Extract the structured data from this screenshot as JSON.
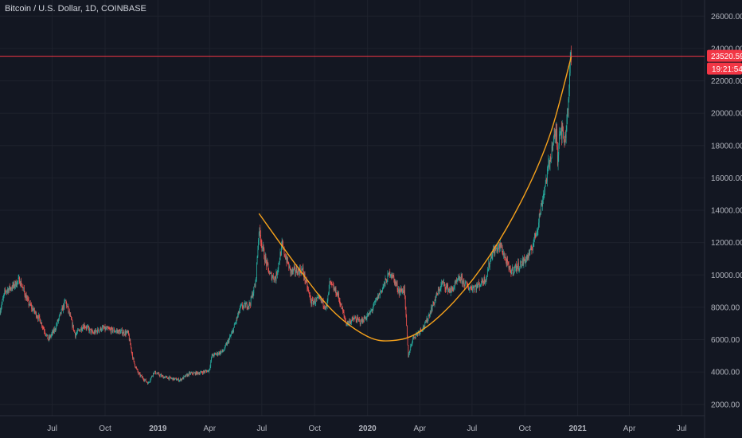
{
  "header": {
    "title": "Bitcoin / U.S. Dollar, 1D, COINBASE"
  },
  "colors": {
    "background": "#131722",
    "grid": "#1e222d",
    "up": "#26a69a",
    "down": "#ef5350",
    "curve": "#f7a21b",
    "price_line": "#f23645",
    "axis_text": "#b2b5be"
  },
  "chart_data": {
    "type": "candlestick",
    "title": "Bitcoin / U.S. Dollar, 1D, COINBASE",
    "y_axis": {
      "side": "right",
      "range": [
        1300,
        27000
      ],
      "ticks": [
        2000,
        4000,
        6000,
        8000,
        10000,
        12000,
        14000,
        16000,
        18000,
        20000,
        22000,
        24000,
        26000
      ],
      "tick_labels": [
        "2000.00",
        "4000.00",
        "6000.00",
        "8000.00",
        "10000.00",
        "12000.00",
        "14000.00",
        "16000.00",
        "18000.00",
        "20000.00",
        "22000.00",
        "24000.00",
        "26000.00"
      ]
    },
    "x_axis": {
      "range": [
        "2018-04-01",
        "2021-08-10"
      ],
      "ticks": [
        {
          "date": "2018-07-01",
          "label": "Jul",
          "bold": false
        },
        {
          "date": "2018-10-01",
          "label": "Oct",
          "bold": false
        },
        {
          "date": "2019-01-01",
          "label": "2019",
          "bold": true
        },
        {
          "date": "2019-04-01",
          "label": "Apr",
          "bold": false
        },
        {
          "date": "2019-07-01",
          "label": "Jul",
          "bold": false
        },
        {
          "date": "2019-10-01",
          "label": "Oct",
          "bold": false
        },
        {
          "date": "2020-01-01",
          "label": "2020",
          "bold": true
        },
        {
          "date": "2020-04-01",
          "label": "Apr",
          "bold": false
        },
        {
          "date": "2020-07-01",
          "label": "Jul",
          "bold": false
        },
        {
          "date": "2020-10-01",
          "label": "Oct",
          "bold": false
        },
        {
          "date": "2021-01-01",
          "label": "2021",
          "bold": true
        },
        {
          "date": "2021-04-01",
          "label": "Apr",
          "bold": false
        },
        {
          "date": "2021-07-01",
          "label": "Jul",
          "bold": false
        }
      ]
    },
    "price_path": [
      [
        "2018-04-01",
        7800
      ],
      [
        "2018-04-10",
        9000
      ],
      [
        "2018-04-24",
        9300
      ],
      [
        "2018-05-05",
        9700
      ],
      [
        "2018-05-20",
        8300
      ],
      [
        "2018-06-10",
        7200
      ],
      [
        "2018-06-24",
        6000
      ],
      [
        "2018-07-05",
        6600
      ],
      [
        "2018-07-24",
        8400
      ],
      [
        "2018-08-10",
        6300
      ],
      [
        "2018-08-25",
        6900
      ],
      [
        "2018-09-10",
        6400
      ],
      [
        "2018-09-25",
        6700
      ],
      [
        "2018-10-10",
        6600
      ],
      [
        "2018-11-10",
        6400
      ],
      [
        "2018-11-20",
        4600
      ],
      [
        "2018-11-28",
        3900
      ],
      [
        "2018-12-15",
        3300
      ],
      [
        "2018-12-25",
        4000
      ],
      [
        "2019-01-10",
        3700
      ],
      [
        "2019-02-08",
        3500
      ],
      [
        "2019-02-25",
        3900
      ],
      [
        "2019-03-15",
        3950
      ],
      [
        "2019-03-31",
        4100
      ],
      [
        "2019-04-05",
        5000
      ],
      [
        "2019-04-25",
        5300
      ],
      [
        "2019-05-10",
        6400
      ],
      [
        "2019-05-25",
        8000
      ],
      [
        "2019-06-10",
        8200
      ],
      [
        "2019-06-20",
        9500
      ],
      [
        "2019-06-26",
        12800
      ],
      [
        "2019-07-05",
        11200
      ],
      [
        "2019-07-15",
        10000
      ],
      [
        "2019-07-25",
        9800
      ],
      [
        "2019-08-05",
        11800
      ],
      [
        "2019-08-20",
        10200
      ],
      [
        "2019-09-10",
        10300
      ],
      [
        "2019-09-25",
        8300
      ],
      [
        "2019-10-10",
        8500
      ],
      [
        "2019-10-22",
        8000
      ],
      [
        "2019-10-27",
        9500
      ],
      [
        "2019-11-10",
        8800
      ],
      [
        "2019-11-25",
        7000
      ],
      [
        "2019-12-10",
        7300
      ],
      [
        "2019-12-20",
        7100
      ],
      [
        "2020-01-05",
        7600
      ],
      [
        "2020-01-20",
        8700
      ],
      [
        "2020-02-10",
        10200
      ],
      [
        "2020-02-25",
        9000
      ],
      [
        "2020-03-05",
        9100
      ],
      [
        "2020-03-12",
        5000
      ],
      [
        "2020-03-20",
        6100
      ],
      [
        "2020-04-10",
        6900
      ],
      [
        "2020-04-30",
        8700
      ],
      [
        "2020-05-10",
        9500
      ],
      [
        "2020-05-25",
        9000
      ],
      [
        "2020-06-10",
        9800
      ],
      [
        "2020-06-25",
        9200
      ],
      [
        "2020-07-10",
        9300
      ],
      [
        "2020-07-25",
        9800
      ],
      [
        "2020-08-05",
        11400
      ],
      [
        "2020-08-20",
        11800
      ],
      [
        "2020-09-05",
        10200
      ],
      [
        "2020-09-25",
        10700
      ],
      [
        "2020-10-10",
        11300
      ],
      [
        "2020-10-22",
        12800
      ],
      [
        "2020-11-05",
        15500
      ],
      [
        "2020-11-18",
        18000
      ],
      [
        "2020-11-25",
        18900
      ],
      [
        "2020-11-27",
        17200
      ],
      [
        "2020-12-01",
        19200
      ],
      [
        "2020-12-10",
        18300
      ],
      [
        "2020-12-16",
        21000
      ],
      [
        "2020-12-20",
        23600
      ],
      [
        "2020-12-21",
        23520
      ]
    ],
    "curve": [
      [
        "2019-06-26",
        13800
      ],
      [
        "2019-09-01",
        10500
      ],
      [
        "2019-11-01",
        7800
      ],
      [
        "2020-01-01",
        6200
      ],
      [
        "2020-02-15",
        5950
      ],
      [
        "2020-04-01",
        6500
      ],
      [
        "2020-06-01",
        8400
      ],
      [
        "2020-08-01",
        11200
      ],
      [
        "2020-10-01",
        15000
      ],
      [
        "2020-11-15",
        18800
      ],
      [
        "2020-12-21",
        23520
      ]
    ],
    "last_price": {
      "value": 23520.59,
      "label": "23520.59",
      "timer": "19:21:54"
    }
  }
}
